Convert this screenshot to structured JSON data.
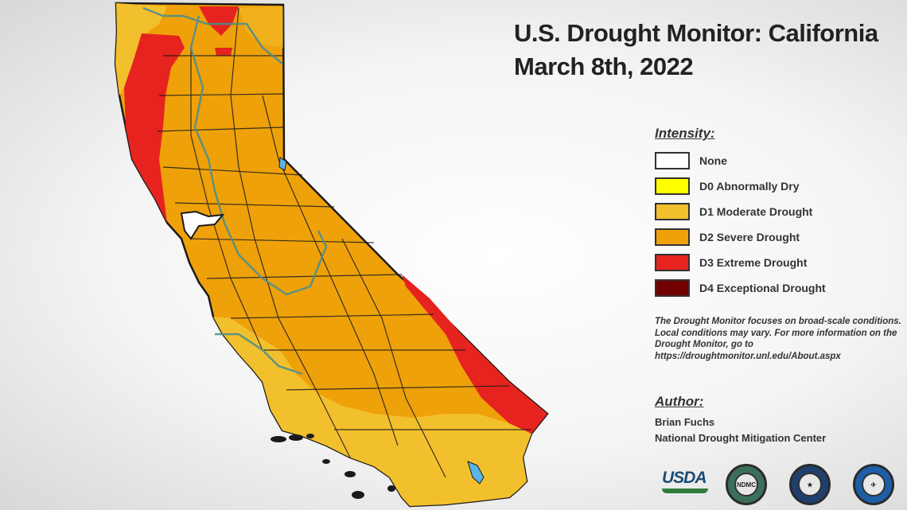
{
  "title": {
    "line1": "U.S. Drought Monitor: California",
    "line2": "March 8th, 2022"
  },
  "legend": {
    "heading": "Intensity:",
    "items": [
      {
        "label": "None",
        "color": "#ffffff"
      },
      {
        "label": "D0 Abnormally Dry",
        "color": "#ffff00"
      },
      {
        "label": "D1 Moderate Drought",
        "color": "#f3c02d"
      },
      {
        "label": "D2 Severe Drought",
        "color": "#efa10a"
      },
      {
        "label": "D3 Extreme Drought",
        "color": "#e6231e"
      },
      {
        "label": "D4 Exceptional Drought",
        "color": "#730000"
      }
    ]
  },
  "note": "The Drought Monitor focuses on broad-scale conditions. Local conditions may vary. For more information on the Drought Monitor, go to https://droughtmonitor.unl.edu/About.aspx",
  "author": {
    "heading": "Author:",
    "name": "Brian Fuchs",
    "org": "National Drought Mitigation Center"
  },
  "logos": {
    "usda": "USDA",
    "ndmc": "NDMC",
    "doc_icon": "commerce-seal-icon",
    "noaa_icon": "noaa-seal-icon"
  },
  "map": {
    "state": "California",
    "colors": {
      "d1": "#f3c02d",
      "d2": "#efa10a",
      "d3": "#e6231e",
      "d4": "#730000",
      "water": "#5ab4e6",
      "border": "#1a1a1a",
      "river": "#4e8f8a"
    }
  }
}
